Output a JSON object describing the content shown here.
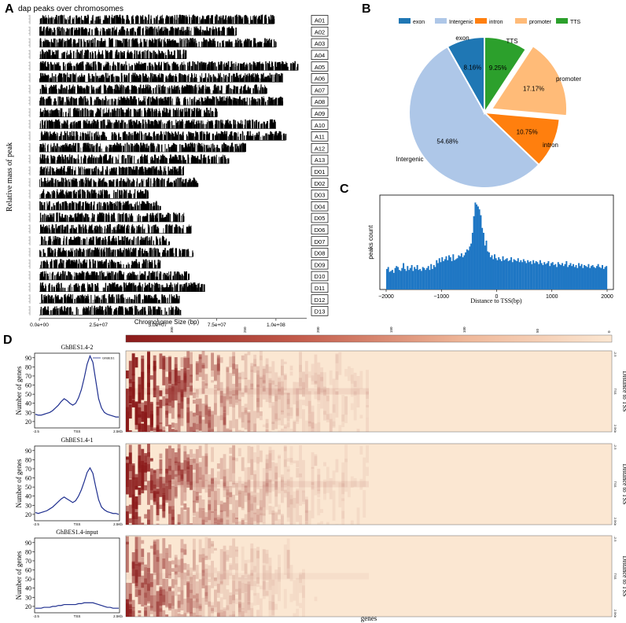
{
  "panel_labels": {
    "a": "A",
    "b": "B",
    "c": "C",
    "d": "D"
  },
  "colors": {
    "exon": "#1f77b4",
    "Intergenic": "#aec7e8",
    "intron": "#ff7f0e",
    "promoter": "#ffbb78",
    "TTS": "#2ca02c",
    "hist": "#1f77c4",
    "profile": "#1f2f8f",
    "heat_dark": "#8b1a1a",
    "heat_light": "#fbe7d2"
  },
  "chart_data": [
    {
      "id": "A",
      "type": "bar",
      "title": "dap peaks over chromosomes",
      "xlabel": "Chromosome Size (bp)",
      "ylabel": "Relative mass of peak",
      "xticks": [
        "0.0e+00",
        "2.5e+07",
        "5.0e+07",
        "7.5e+07",
        "1.0e+08"
      ],
      "xtick_values": [
        0,
        25000000,
        50000000,
        75000000,
        100000000
      ],
      "xlim": [
        0,
        113000000
      ],
      "chromosomes": [
        {
          "name": "A01",
          "length": 99000000
        },
        {
          "name": "A02",
          "length": 83000000
        },
        {
          "name": "A03",
          "length": 100000000
        },
        {
          "name": "A04",
          "length": 62000000
        },
        {
          "name": "A05",
          "length": 109000000
        },
        {
          "name": "A06",
          "length": 103000000
        },
        {
          "name": "A07",
          "length": 96000000
        },
        {
          "name": "A08",
          "length": 103000000
        },
        {
          "name": "A09",
          "length": 75000000
        },
        {
          "name": "A10",
          "length": 100000000
        },
        {
          "name": "A11",
          "length": 104000000
        },
        {
          "name": "A12",
          "length": 87000000
        },
        {
          "name": "A13",
          "length": 80000000
        },
        {
          "name": "D01",
          "length": 61000000
        },
        {
          "name": "D02",
          "length": 67000000
        },
        {
          "name": "D03",
          "length": 46000000
        },
        {
          "name": "D04",
          "length": 51000000
        },
        {
          "name": "D05",
          "length": 61000000
        },
        {
          "name": "D06",
          "length": 64000000
        },
        {
          "name": "D07",
          "length": 55000000
        },
        {
          "name": "D08",
          "length": 65000000
        },
        {
          "name": "D09",
          "length": 51000000
        },
        {
          "name": "D10",
          "length": 63000000
        },
        {
          "name": "D11",
          "length": 70000000
        },
        {
          "name": "D12",
          "length": 59000000
        },
        {
          "name": "D13",
          "length": 60000000
        }
      ]
    },
    {
      "id": "B",
      "type": "pie",
      "legend": [
        "exon",
        "Intergenic",
        "intron",
        "promoter",
        "TTS"
      ],
      "legend_position": "top",
      "slices": [
        {
          "label": "exon",
          "value": 8.16,
          "text": "8.16%",
          "explode": false
        },
        {
          "label": "Intergenic",
          "value": 54.68,
          "text": "54.68%",
          "explode": false
        },
        {
          "label": "intron",
          "value": 10.75,
          "text": "10.75%",
          "explode": false
        },
        {
          "label": "promoter",
          "value": 17.17,
          "text": "17.17%",
          "explode": true
        },
        {
          "label": "TTS",
          "value": 9.25,
          "text": "9.25%",
          "explode": false
        }
      ]
    },
    {
      "id": "C",
      "type": "bar",
      "xlabel": "Distance to TSS(bp)",
      "ylabel": "peaks count",
      "xlim": [
        -2000,
        2000
      ],
      "ylim": [
        0,
        90
      ],
      "xticks": [
        -2000,
        -1000,
        0,
        1000,
        2000
      ],
      "xtick_labels": [
        "−2000",
        "−1000",
        "0",
        "1000",
        "2000"
      ],
      "bin_width": 25,
      "x": [
        -1987,
        -1963,
        -1937,
        -1913,
        -1887,
        -1863,
        -1837,
        -1813,
        -1787,
        -1763,
        -1737,
        -1713,
        -1687,
        -1663,
        -1637,
        -1613,
        -1587,
        -1563,
        -1537,
        -1513,
        -1487,
        -1463,
        -1437,
        -1413,
        -1387,
        -1363,
        -1337,
        -1313,
        -1287,
        -1263,
        -1237,
        -1213,
        -1187,
        -1163,
        -1137,
        -1113,
        -1087,
        -1063,
        -1037,
        -1013,
        -987,
        -963,
        -937,
        -913,
        -887,
        -863,
        -837,
        -813,
        -787,
        -763,
        -737,
        -713,
        -687,
        -663,
        -637,
        -613,
        -587,
        -563,
        -537,
        -513,
        -487,
        -463,
        -437,
        -413,
        -387,
        -363,
        -337,
        -313,
        -287,
        -263,
        -237,
        -213,
        -187,
        -163,
        -137,
        -113,
        -87,
        -63,
        -37,
        -13,
        13,
        37,
        63,
        87,
        113,
        137,
        163,
        187,
        213,
        237,
        263,
        287,
        313,
        337,
        363,
        387,
        413,
        437,
        463,
        487,
        513,
        537,
        563,
        587,
        613,
        637,
        663,
        687,
        713,
        737,
        763,
        787,
        813,
        837,
        863,
        887,
        913,
        937,
        963,
        987,
        1013,
        1037,
        1063,
        1087,
        1113,
        1137,
        1163,
        1187,
        1213,
        1237,
        1263,
        1287,
        1313,
        1337,
        1363,
        1387,
        1413,
        1437,
        1463,
        1487,
        1513,
        1537,
        1563,
        1587,
        1613,
        1637,
        1663,
        1687,
        1713,
        1737,
        1763,
        1787,
        1813,
        1837,
        1863,
        1887,
        1913,
        1937,
        1963,
        1987
      ],
      "values": [
        21,
        23,
        18,
        19,
        20,
        17,
        22,
        24,
        23,
        20,
        19,
        22,
        27,
        21,
        19,
        24,
        20,
        22,
        25,
        19,
        23,
        21,
        25,
        20,
        21,
        19,
        23,
        22,
        20,
        22,
        24,
        20,
        26,
        21,
        25,
        23,
        30,
        27,
        32,
        28,
        33,
        29,
        31,
        34,
        30,
        35,
        33,
        29,
        36,
        30,
        31,
        32,
        35,
        34,
        37,
        33,
        35,
        38,
        41,
        40,
        44,
        47,
        58,
        75,
        89,
        87,
        85,
        82,
        76,
        63,
        58,
        45,
        50,
        39,
        38,
        33,
        35,
        31,
        36,
        32,
        30,
        33,
        31,
        29,
        34,
        30,
        31,
        32,
        29,
        30,
        33,
        28,
        31,
        30,
        29,
        32,
        28,
        30,
        28,
        31,
        29,
        27,
        30,
        28,
        29,
        26,
        30,
        27,
        29,
        28,
        26,
        30,
        27,
        25,
        28,
        26,
        27,
        29,
        24,
        27,
        28,
        25,
        26,
        23,
        28,
        26,
        25,
        27,
        24,
        26,
        29,
        23,
        25,
        27,
        24,
        26,
        23,
        25,
        22,
        27,
        24,
        26,
        22,
        25,
        24,
        23,
        26,
        22,
        24,
        25,
        23,
        22,
        24,
        26,
        23,
        22,
        25,
        21,
        23,
        24
      ]
    },
    {
      "id": "D",
      "type": "heatmap",
      "xlabel": "genes",
      "colorbar_ticks": [
        "300",
        "250",
        "200",
        "150",
        "100",
        "50",
        "0"
      ],
      "panels": [
        {
          "title": "GhBES1.4-2",
          "legend": "GhBES1",
          "ylabel": "Number of genes",
          "yticks": [
            20,
            30,
            40,
            50,
            60,
            70,
            80,
            90
          ],
          "xticks": [
            "-2.5",
            "TSS",
            "2.5Kb"
          ],
          "right_label": "Distance to TSS",
          "right_ticks": [
            "-2.5",
            "TSS",
            "2.5Kb"
          ],
          "intensity": 1.0,
          "profile": [
            28,
            27,
            27,
            28,
            29,
            30,
            32,
            35,
            38,
            42,
            45,
            43,
            40,
            38,
            40,
            46,
            55,
            68,
            83,
            92,
            85,
            65,
            45,
            35,
            30,
            28,
            27,
            26,
            25,
            25
          ]
        },
        {
          "title": "GhBES1.4-1",
          "legend": "",
          "ylabel": "Number of genes",
          "yticks": [
            20,
            30,
            40,
            50,
            60,
            70,
            80,
            90
          ],
          "xticks": [
            "-2.5",
            "TSS",
            "2.5Kb"
          ],
          "right_label": "Distance to TSS",
          "right_ticks": [
            "-2.5",
            "TSS",
            "2.5Kb"
          ],
          "intensity": 0.85,
          "profile": [
            22,
            21,
            22,
            23,
            24,
            26,
            28,
            31,
            34,
            37,
            39,
            37,
            35,
            33,
            35,
            40,
            47,
            56,
            66,
            71,
            65,
            50,
            36,
            28,
            25,
            23,
            22,
            21,
            21,
            20
          ]
        },
        {
          "title": "GhBES1.4-input",
          "legend": "",
          "ylabel": "Number of genes",
          "yticks": [
            20,
            30,
            40,
            50,
            60,
            70,
            80,
            90
          ],
          "xticks": [
            "-2.5",
            "TSS",
            "2.5Kb"
          ],
          "right_label": "Distance to TSS",
          "right_ticks": [
            "-2.5",
            "TSS",
            "2.5Kb"
          ],
          "intensity": 0.55,
          "profile": [
            18,
            18,
            18,
            19,
            19,
            19,
            20,
            20,
            21,
            21,
            22,
            22,
            22,
            22,
            22,
            23,
            23,
            24,
            24,
            24,
            24,
            23,
            22,
            21,
            20,
            19,
            19,
            18,
            18,
            18
          ]
        }
      ]
    }
  ]
}
